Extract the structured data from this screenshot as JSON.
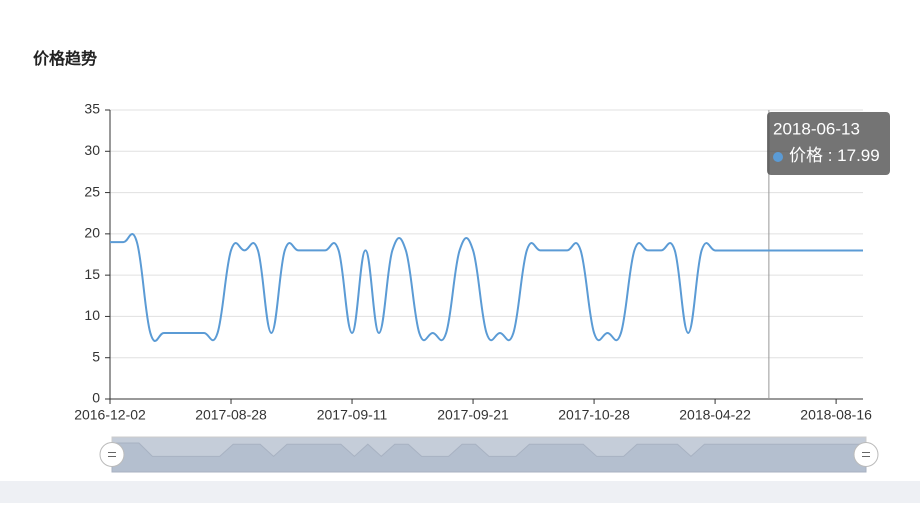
{
  "chart_data": {
    "type": "line",
    "title": "价格趋势",
    "categories": [
      "2016-12-02",
      null,
      null,
      null,
      null,
      null,
      null,
      null,
      null,
      "2017-08-28",
      null,
      null,
      null,
      null,
      null,
      null,
      null,
      null,
      "2017-09-11",
      null,
      null,
      null,
      null,
      null,
      null,
      null,
      null,
      "2017-09-21",
      null,
      null,
      null,
      null,
      null,
      null,
      null,
      null,
      "2017-10-28",
      null,
      null,
      null,
      null,
      null,
      null,
      null,
      null,
      "2018-04-22",
      null,
      null,
      null,
      "2018-06-13",
      null,
      null,
      null,
      null,
      "2018-08-16",
      null,
      null
    ],
    "series": [
      {
        "name": "价格",
        "color": "#5b9bd5",
        "values": [
          19,
          19,
          19,
          8,
          8,
          8,
          8,
          8,
          8,
          18,
          18,
          18,
          8,
          18,
          18,
          18,
          18,
          18,
          8,
          18,
          8,
          18,
          18,
          8,
          8,
          8,
          18,
          18,
          8,
          8,
          8,
          18,
          18,
          18,
          18,
          18,
          8,
          8,
          8,
          18,
          18,
          18,
          18,
          8,
          18,
          17.99,
          17.99,
          17.99,
          17.99,
          17.99,
          17.99,
          17.99,
          17.99,
          17.99,
          17.99,
          17.99,
          17.99
        ]
      }
    ],
    "ylim": [
      0,
      35
    ],
    "yticks": [
      0,
      5,
      10,
      15,
      20,
      25,
      30,
      35
    ],
    "grid": true,
    "tooltip_index": 49
  }
}
